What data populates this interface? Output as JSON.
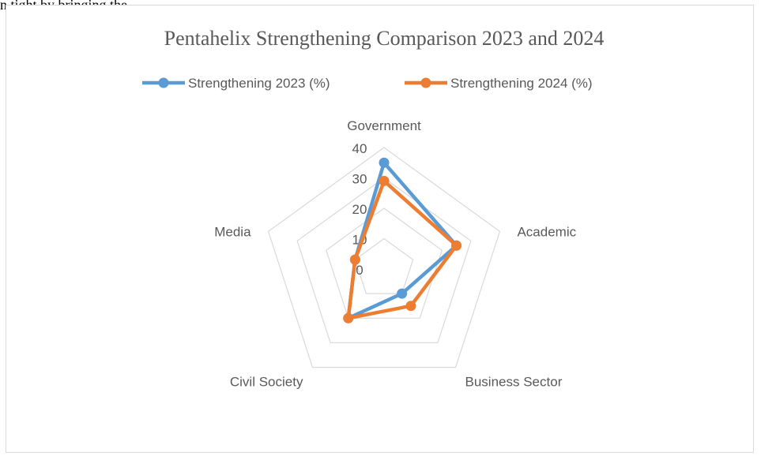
{
  "page_top_text": "n tight by bringing the",
  "chart_data": {
    "type": "radar",
    "title": "Pentahelix Strengthening Comparison 2023 and 2024",
    "categories": [
      "Government",
      "Academic",
      "Business Sector",
      "Civil Society",
      "Media"
    ],
    "rlim": [
      0,
      40
    ],
    "rticks": [
      0,
      10,
      20,
      30,
      40
    ],
    "grid": true,
    "legend_position": "top",
    "series": [
      {
        "name": "Strengthening 2023 (%)",
        "color": "#5b9bd5",
        "values": [
          35,
          25,
          10,
          20,
          10
        ]
      },
      {
        "name": "Strengthening 2024 (%)",
        "color": "#ed7d31",
        "values": [
          29,
          25,
          15,
          20,
          10
        ]
      }
    ]
  }
}
